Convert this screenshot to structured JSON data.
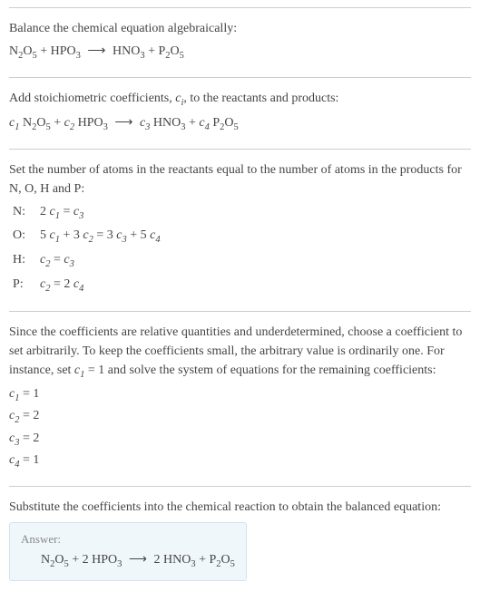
{
  "s1": {
    "title": "Balance the chemical equation algebraically:",
    "eq_lhs1": "N",
    "eq_lhs1_sub1": "2",
    "eq_lhs1b": "O",
    "eq_lhs1_sub2": "5",
    "plus1": " + HPO",
    "eq_lhs2_sub": "3",
    "arrow": "⟶",
    "eq_rhs1": "HNO",
    "eq_rhs1_sub": "3",
    "plus2": " + P",
    "eq_rhs2_sub1": "2",
    "eq_rhs2b": "O",
    "eq_rhs2_sub2": "5"
  },
  "s2": {
    "title_a": "Add stoichiometric coefficients, ",
    "ci": "c",
    "ci_sub": "i",
    "title_b": ", to the reactants and products:",
    "c1": "c",
    "c1s": "1",
    "sp1": " N",
    "sp1s1": "2",
    "sp1b": "O",
    "sp1s2": "5",
    "pl1": " + ",
    "c2": "c",
    "c2s": "2",
    "sp2": " HPO",
    "sp2s": "3",
    "arrow": "⟶",
    "c3": "c",
    "c3s": "3",
    "sp3": " HNO",
    "sp3s": "3",
    "pl2": " + ",
    "c4": "c",
    "c4s": "4",
    "sp4": " P",
    "sp4s1": "2",
    "sp4b": "O",
    "sp4s2": "5"
  },
  "s3": {
    "title": "Set the number of atoms in the reactants equal to the number of atoms in the products for N, O, H and P:",
    "rows": [
      {
        "el": "N:",
        "lhs_a": "2 ",
        "lhs_c": "c",
        "lhs_s": "1",
        "mid": " = ",
        "rhs_c": "c",
        "rhs_s": "3",
        "extra": ""
      },
      {
        "el": "O:",
        "pre": "5 ",
        "c1": "c",
        "c1s": "1",
        "pl": " + 3 ",
        "c2": "c",
        "c2s": "2",
        "eq": " = 3 ",
        "c3": "c",
        "c3s": "3",
        "pl2": " + 5 ",
        "c4": "c",
        "c4s": "4"
      },
      {
        "el": "H:",
        "c1": "c",
        "c1s": "2",
        "eq": " = ",
        "c2": "c",
        "c2s": "3"
      },
      {
        "el": "P:",
        "c1": "c",
        "c1s": "2",
        "eq": " = 2 ",
        "c2": "c",
        "c2s": "4"
      }
    ]
  },
  "s4": {
    "title_a": "Since the coefficients are relative quantities and underdetermined, choose a coefficient to set arbitrarily. To keep the coefficients small, the arbitrary value is ordinarily one. For instance, set ",
    "cset": "c",
    "cset_s": "1",
    "title_b": " = 1 and solve the system of equations for the remaining coefficients:",
    "coefs": [
      {
        "c": "c",
        "s": "1",
        "v": " = 1"
      },
      {
        "c": "c",
        "s": "2",
        "v": " = 2"
      },
      {
        "c": "c",
        "s": "3",
        "v": " = 2"
      },
      {
        "c": "c",
        "s": "4",
        "v": " = 1"
      }
    ]
  },
  "s5": {
    "title": "Substitute the coefficients into the chemical reaction to obtain the balanced equation:",
    "answer_label": "Answer:",
    "eq": {
      "a": "N",
      "as1": "2",
      "ab": "O",
      "as2": "5",
      "pl1": " + 2 HPO",
      "b_s": "3",
      "arrow": "⟶",
      "c_pre": " 2 HNO",
      "c_s": "3",
      "pl2": " + P",
      "d_s1": "2",
      "db": "O",
      "d_s2": "5"
    }
  },
  "colors": {
    "text": "#444444",
    "divider": "#cccccc",
    "answer_bg": "#f0f7fb",
    "answer_border": "#d0e3ee",
    "answer_label": "#888888"
  }
}
